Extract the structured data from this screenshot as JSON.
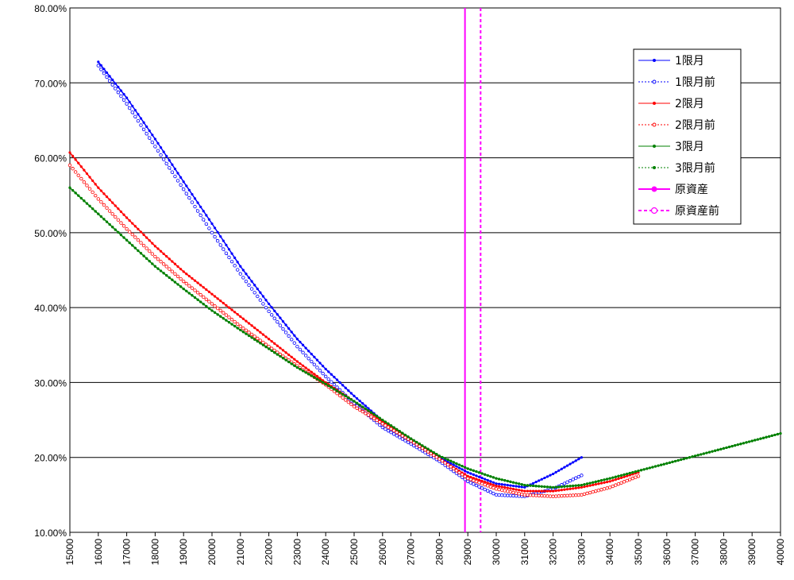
{
  "chart_data": {
    "type": "line",
    "title": "",
    "xlabel": "",
    "ylabel": "",
    "xlim": [
      15000,
      40000
    ],
    "ylim": [
      0.1,
      0.8
    ],
    "x_ticks": [
      15000,
      16000,
      17000,
      18000,
      19000,
      20000,
      21000,
      22000,
      23000,
      24000,
      25000,
      26000,
      27000,
      28000,
      29000,
      30000,
      31000,
      32000,
      33000,
      34000,
      35000,
      36000,
      37000,
      38000,
      39000,
      40000
    ],
    "x_tick_labels": [
      "15000",
      "16000",
      "17000",
      "18000",
      "19000",
      "20000",
      "21000",
      "22000",
      "23000",
      "24000",
      "25000",
      "26000",
      "27000",
      "28000",
      "29000",
      "30000",
      "31000",
      "32000",
      "33000",
      "34000",
      "35000",
      "36000",
      "37000",
      "38000",
      "39000",
      "40000"
    ],
    "y_ticks": [
      0.1,
      0.2,
      0.3,
      0.4,
      0.5,
      0.6,
      0.7,
      0.8
    ],
    "y_tick_labels": [
      "10.00%",
      "20.00%",
      "30.00%",
      "40.00%",
      "50.00%",
      "60.00%",
      "70.00%",
      "80.00%"
    ],
    "grid": "horizontal",
    "legend_position": "top-right",
    "series": [
      {
        "name": "1限月",
        "color": "#0000ff",
        "style": "solid",
        "marker": "filled-dot",
        "x": [
          16000,
          17000,
          18000,
          19000,
          20000,
          21000,
          22000,
          23000,
          24000,
          25000,
          26000,
          27000,
          28000,
          29000,
          30000,
          31000,
          32000,
          33000
        ],
        "y": [
          0.728,
          0.68,
          0.625,
          0.568,
          0.512,
          0.455,
          0.405,
          0.358,
          0.318,
          0.282,
          0.249,
          0.225,
          0.2,
          0.18,
          0.165,
          0.16,
          0.178,
          0.2
        ]
      },
      {
        "name": "1限月前",
        "color": "#0000ff",
        "style": "dotted",
        "marker": "hollow-circle",
        "x": [
          16000,
          17000,
          18000,
          19000,
          20000,
          21000,
          22000,
          23000,
          24000,
          25000,
          26000,
          27000,
          28000,
          29000,
          30000,
          31000,
          32000,
          33000
        ],
        "y": [
          0.723,
          0.672,
          0.615,
          0.558,
          0.5,
          0.445,
          0.395,
          0.348,
          0.308,
          0.272,
          0.24,
          0.218,
          0.195,
          0.168,
          0.15,
          0.148,
          0.158,
          0.176
        ]
      },
      {
        "name": "2限月",
        "color": "#ff0000",
        "style": "solid",
        "marker": "filled-dot",
        "x": [
          15000,
          16000,
          17000,
          18000,
          19000,
          20000,
          21000,
          22000,
          23000,
          24000,
          25000,
          26000,
          27000,
          28000,
          29000,
          30000,
          31000,
          32000,
          33000,
          34000,
          35000
        ],
        "y": [
          0.607,
          0.56,
          0.52,
          0.482,
          0.448,
          0.418,
          0.388,
          0.358,
          0.328,
          0.3,
          0.275,
          0.248,
          0.225,
          0.198,
          0.175,
          0.162,
          0.155,
          0.155,
          0.16,
          0.168,
          0.18
        ]
      },
      {
        "name": "2限月前",
        "color": "#ff0000",
        "style": "dotted",
        "marker": "hollow-circle",
        "x": [
          15000,
          16000,
          17000,
          18000,
          19000,
          20000,
          21000,
          22000,
          23000,
          24000,
          25000,
          26000,
          27000,
          28000,
          29000,
          30000,
          31000,
          32000,
          33000,
          34000,
          35000
        ],
        "y": [
          0.59,
          0.545,
          0.505,
          0.468,
          0.435,
          0.405,
          0.375,
          0.348,
          0.322,
          0.297,
          0.268,
          0.245,
          0.222,
          0.198,
          0.172,
          0.158,
          0.15,
          0.148,
          0.15,
          0.16,
          0.175
        ]
      },
      {
        "name": "3限月",
        "color": "#008000",
        "style": "solid",
        "marker": "filled-dot",
        "x": [
          15000,
          16000,
          17000,
          18000,
          19000,
          20000,
          21000,
          22000,
          23000,
          24000,
          25000,
          26000,
          27000,
          28000,
          29000,
          30000,
          31000,
          32000,
          33000,
          34000,
          35000,
          36000,
          37000,
          38000,
          39000,
          40000
        ],
        "y": [
          0.56,
          0.525,
          0.49,
          0.455,
          0.425,
          0.396,
          0.37,
          0.345,
          0.32,
          0.298,
          0.275,
          0.25,
          0.225,
          0.202,
          0.185,
          0.172,
          0.163,
          0.16,
          0.163,
          0.172,
          0.182,
          0.192,
          0.202,
          0.212,
          0.222,
          0.232
        ]
      },
      {
        "name": "3限月前",
        "color": "#008000",
        "style": "dotted",
        "marker": "filled-dot",
        "x": [
          15000,
          16000,
          17000,
          18000,
          19000,
          20000,
          21000,
          22000,
          23000,
          24000,
          25000,
          26000,
          27000,
          28000,
          29000,
          30000,
          31000,
          32000,
          33000,
          34000,
          35000,
          36000,
          37000,
          38000,
          39000,
          40000
        ],
        "y": [
          0.56,
          0.525,
          0.49,
          0.455,
          0.425,
          0.396,
          0.37,
          0.345,
          0.32,
          0.298,
          0.275,
          0.25,
          0.225,
          0.202,
          0.185,
          0.172,
          0.163,
          0.16,
          0.163,
          0.172,
          0.182,
          0.192,
          0.202,
          0.212,
          0.222,
          0.232
        ]
      }
    ],
    "vertical_lines": [
      {
        "name": "原資産",
        "x": 28900,
        "color": "#ff00ff",
        "style": "solid"
      },
      {
        "name": "原資産前",
        "x": 29450,
        "color": "#ff00ff",
        "style": "dashed"
      }
    ]
  }
}
